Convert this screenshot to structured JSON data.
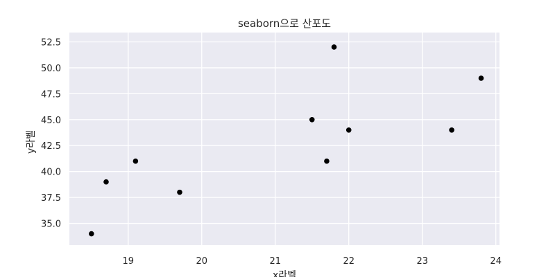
{
  "chart_data": {
    "type": "scatter",
    "title": "seaborn으로 산포도",
    "xlabel": "x라벨",
    "ylabel": "y라벨",
    "xlim": [
      18.2,
      24.05
    ],
    "ylim": [
      32.9,
      53.4
    ],
    "xticks": [
      19,
      20,
      21,
      22,
      23,
      24
    ],
    "yticks": [
      35.0,
      37.5,
      40.0,
      42.5,
      45.0,
      47.5,
      50.0,
      52.5
    ],
    "xtick_labels": [
      "19",
      "20",
      "21",
      "22",
      "23",
      "24"
    ],
    "ytick_labels": [
      "35.0",
      "37.5",
      "40.0",
      "42.5",
      "45.0",
      "47.5",
      "50.0",
      "52.5"
    ],
    "grid": true,
    "style": "seaborn darkgrid",
    "colors": {
      "background": "#eaeaf2",
      "grid": "#ffffff",
      "marker": "#000000"
    },
    "points": [
      {
        "x": 18.5,
        "y": 34
      },
      {
        "x": 18.7,
        "y": 39
      },
      {
        "x": 19.1,
        "y": 41
      },
      {
        "x": 19.7,
        "y": 38
      },
      {
        "x": 21.5,
        "y": 45
      },
      {
        "x": 21.7,
        "y": 41
      },
      {
        "x": 21.8,
        "y": 52
      },
      {
        "x": 22.0,
        "y": 44
      },
      {
        "x": 23.4,
        "y": 44
      },
      {
        "x": 23.8,
        "y": 49
      }
    ]
  }
}
